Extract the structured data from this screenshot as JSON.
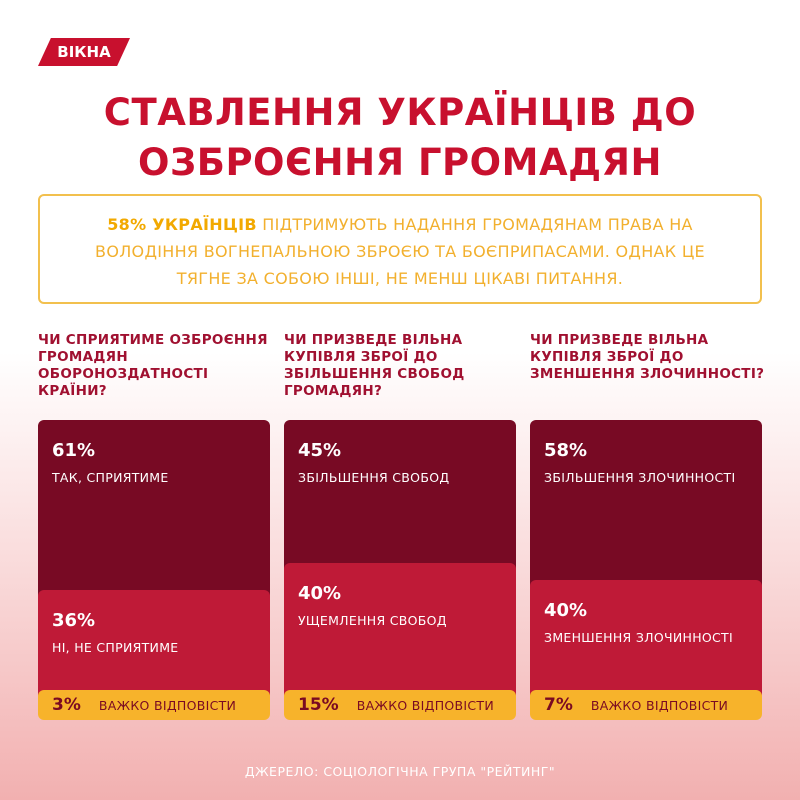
{
  "brand": "ВІКНА",
  "title": [
    "СТАВЛЕННЯ УКРАЇНЦІВ ДО",
    "ОЗБРОЄННЯ ГРОМАДЯН"
  ],
  "intro": {
    "highlight": "58% УКРАЇНЦІВ",
    "text": " ПІДТРИМУЮТЬ НАДАННЯ ГРОМАДЯНАМ ПРАВА НА ВОЛОДІННЯ ВОГНЕПАЛЬНОЮ ЗБРОЄЮ ТА БОЄПРИПАСАМИ. ОДНАК ЦЕ ТЯГНЕ ЗА СОБОЮ ІНШІ, НЕ МЕНШ ЦІКАВІ ПИТАННЯ."
  },
  "source": "ДЖЕРЕЛО: СОЦІОЛОГІЧНА ГРУПА \"РЕЙТИНГ\"",
  "colors": {
    "accent": "#c8102e",
    "dark": "#780a24",
    "mid": "#bf1a37",
    "yellow": "#f7b32b"
  },
  "chart_data": [
    {
      "type": "bar",
      "title": "ЧИ СПРИЯТИМЕ ОЗБРОЄННЯ ГРОМАДЯН ОБОРОНОЗДАТНОСТІ КРАЇНИ?",
      "categories": [
        "ТАК, СПРИЯТИМЕ",
        "НІ, НЕ СПРИЯТИМЕ",
        "ВАЖКО ВІДПОВІСТИ"
      ],
      "values": [
        61,
        36,
        3
      ],
      "value_labels": [
        "61%",
        "36%",
        "3%"
      ]
    },
    {
      "type": "bar",
      "title": "ЧИ ПРИЗВЕДЕ ВІЛЬНА КУПІВЛЯ ЗБРОЇ ДО ЗБІЛЬШЕННЯ СВОБОД ГРОМАДЯН?",
      "categories": [
        "ЗБІЛЬШЕННЯ СВОБОД",
        "УЩЕМЛЕННЯ СВОБОД",
        "ВАЖКО ВІДПОВІСТИ"
      ],
      "values": [
        45,
        40,
        15
      ],
      "value_labels": [
        "45%",
        "40%",
        "15%"
      ]
    },
    {
      "type": "bar",
      "title": "ЧИ ПРИЗВЕДЕ ВІЛЬНА КУПІВЛЯ ЗБРОЇ ДО ЗМЕНШЕННЯ ЗЛОЧИННОСТІ?",
      "categories": [
        "ЗБІЛЬШЕННЯ ЗЛОЧИННОСТІ",
        "ЗМЕНШЕННЯ ЗЛОЧИННОСТІ",
        "ВАЖКО ВІДПОВІСТИ"
      ],
      "values": [
        58,
        40,
        7
      ],
      "value_labels": [
        "58%",
        "40%",
        "7%"
      ]
    }
  ]
}
